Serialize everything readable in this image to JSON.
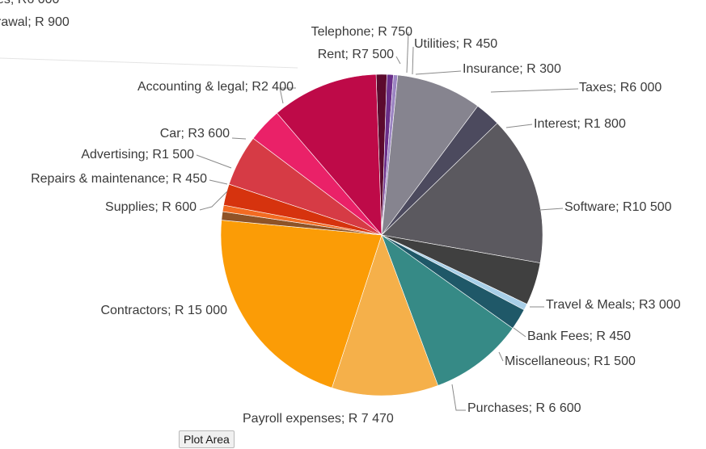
{
  "chart_data": {
    "type": "pie",
    "slices": [
      {
        "label": "Telephone;  R 750",
        "value": 750,
        "color": "#5c0a2e"
      },
      {
        "label": "Utilities;  R 450",
        "value": 450,
        "color": "#6a2f8a"
      },
      {
        "label": "Insurance;  R 300",
        "value": 300,
        "color": "#9c85c2"
      },
      {
        "label": "Taxes;  R6 000",
        "value": 6000,
        "color": "#86848f"
      },
      {
        "label": "Interest;  R1 800",
        "value": 1800,
        "color": "#4c4a5e"
      },
      {
        "label": "Software;  R10 500",
        "value": 10500,
        "color": "#5b595f"
      },
      {
        "label": "Travel & Meals;  R3 000",
        "value": 3000,
        "color": "#404040"
      },
      {
        "label": "Bank Fees;  R 450",
        "value": 450,
        "color": "#a8cfe8"
      },
      {
        "label": "Miscellaneous;  R1 500",
        "value": 1500,
        "color": "#1f5868"
      },
      {
        "label": "Purchases;  R 6 600",
        "value": 6600,
        "color": "#368a86"
      },
      {
        "label": "Payroll expenses;  R 7 470",
        "value": 7470,
        "color": "#f5b04a"
      },
      {
        "label": "Contractors;  R 15 000",
        "value": 15000,
        "color": "#fb9c06"
      },
      {
        "label": "Supplies;  R  600",
        "value": 600,
        "color": "#8e5327"
      },
      {
        "label": "Repairs & maintenance;  R 450",
        "value": 450,
        "color": "#f26b22"
      },
      {
        "label": "Advertising;  R1 500",
        "value": 1500,
        "color": "#d6330e"
      },
      {
        "label": "Car;  R3 600",
        "value": 3600,
        "color": "#d63b45"
      },
      {
        "label": "Accounting & legal;  R2 400",
        "value": 2400,
        "color": "#ea2168"
      },
      {
        "label": "Rent;  R7 500",
        "value": 7500,
        "color": "#be0a48"
      }
    ],
    "cutoff_labels": [
      "es;  R6 000",
      "rawal;  R 900"
    ]
  },
  "tooltip": "Plot Area"
}
